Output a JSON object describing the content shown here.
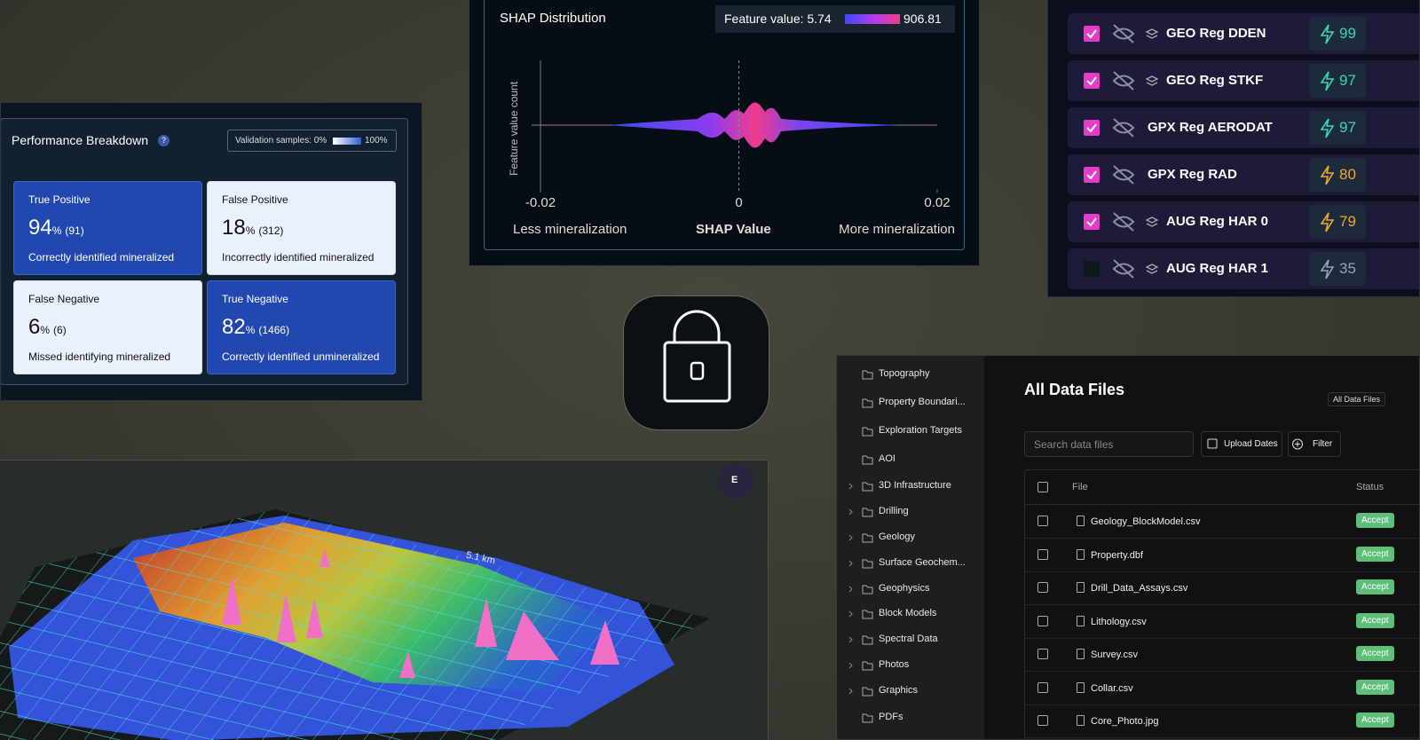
{
  "performance": {
    "title": "Performance Breakdown",
    "help": "?",
    "legend_label": "Validation samples: 0%",
    "legend_max": "100%",
    "cells": [
      {
        "title": "True Positive",
        "percent": 94,
        "unit": "%",
        "count": "(91)",
        "caption": "Correctly identified mineralized",
        "tone": "dark"
      },
      {
        "title": "False Positive",
        "percent": 18,
        "unit": "%",
        "count": "(312)",
        "caption": "Incorrectly identified mineralized",
        "tone": "light"
      },
      {
        "title": "False Negative",
        "percent": 6,
        "unit": "%",
        "count": "(6)",
        "caption": "Missed identifying mineralized",
        "tone": "light"
      },
      {
        "title": "True Negative",
        "percent": 82,
        "unit": "%",
        "count": "(1466)",
        "caption": "Correctly identified unmineralized",
        "tone": "dark"
      }
    ]
  },
  "shap": {
    "title": "SHAP Distribution",
    "legend_label": "Feature value: 5.74",
    "legend_max": "906.81",
    "y_label": "Feature value count",
    "x_ticks": [
      -0.02,
      0,
      0.02
    ],
    "left_label": "Less mineralization",
    "x_label": "SHAP Value",
    "right_label": "More mineralization"
  },
  "layers": [
    {
      "name": "GEO Reg DDEN",
      "score": 99,
      "checked": true,
      "stacked": true,
      "color": "#3fd6b0"
    },
    {
      "name": "GEO Reg STKF",
      "score": 97,
      "checked": true,
      "stacked": true,
      "color": "#3fd6b0"
    },
    {
      "name": "GPX Reg AERODAT",
      "score": 97,
      "checked": true,
      "stacked": false,
      "color": "#3fd6b0"
    },
    {
      "name": "GPX Reg RAD",
      "score": 80,
      "checked": true,
      "stacked": false,
      "color": "#f0a92c"
    },
    {
      "name": "AUG Reg HAR 0",
      "score": 79,
      "checked": true,
      "stacked": true,
      "color": "#f0a92c"
    },
    {
      "name": "AUG Reg HAR 1",
      "score": 35,
      "checked": false,
      "stacked": true,
      "color": "#9aa3ad"
    }
  ],
  "map": {
    "scale": "5.1 km",
    "compass": "E"
  },
  "files": {
    "folders": [
      {
        "name": "Topography",
        "expandable": false
      },
      {
        "name": "Property Boundari...",
        "expandable": false
      },
      {
        "name": "Exploration Targets",
        "expandable": false
      },
      {
        "name": "AOI",
        "expandable": false
      },
      {
        "name": "3D Infrastructure",
        "expandable": true
      },
      {
        "name": "Drilling",
        "expandable": true
      },
      {
        "name": "Geology",
        "expandable": true
      },
      {
        "name": "Surface Geochem...",
        "expandable": true
      },
      {
        "name": "Geophysics",
        "expandable": true
      },
      {
        "name": "Block Models",
        "expandable": true
      },
      {
        "name": "Spectral Data",
        "expandable": true
      },
      {
        "name": "Photos",
        "expandable": true
      },
      {
        "name": "Graphics",
        "expandable": true
      },
      {
        "name": "PDFs",
        "expandable": false
      }
    ],
    "heading": "All Data Files",
    "badge": "All Data Files",
    "search": "Search data files",
    "upload": "Upload Dates",
    "filter": "Filter",
    "columns": [
      "File",
      "Status"
    ],
    "rows": [
      {
        "name": "Geology_BlockModel.csv",
        "status": "Accept"
      },
      {
        "name": "Property.dbf",
        "status": "Accept"
      },
      {
        "name": "Drill_Data_Assays.csv",
        "status": "Accept"
      },
      {
        "name": "Lithology.csv",
        "status": "Accept"
      },
      {
        "name": "Survey.csv",
        "status": "Accept"
      },
      {
        "name": "Collar.csv",
        "status": "Accept"
      },
      {
        "name": "Core_Photo.jpg",
        "status": "Accept"
      }
    ]
  }
}
